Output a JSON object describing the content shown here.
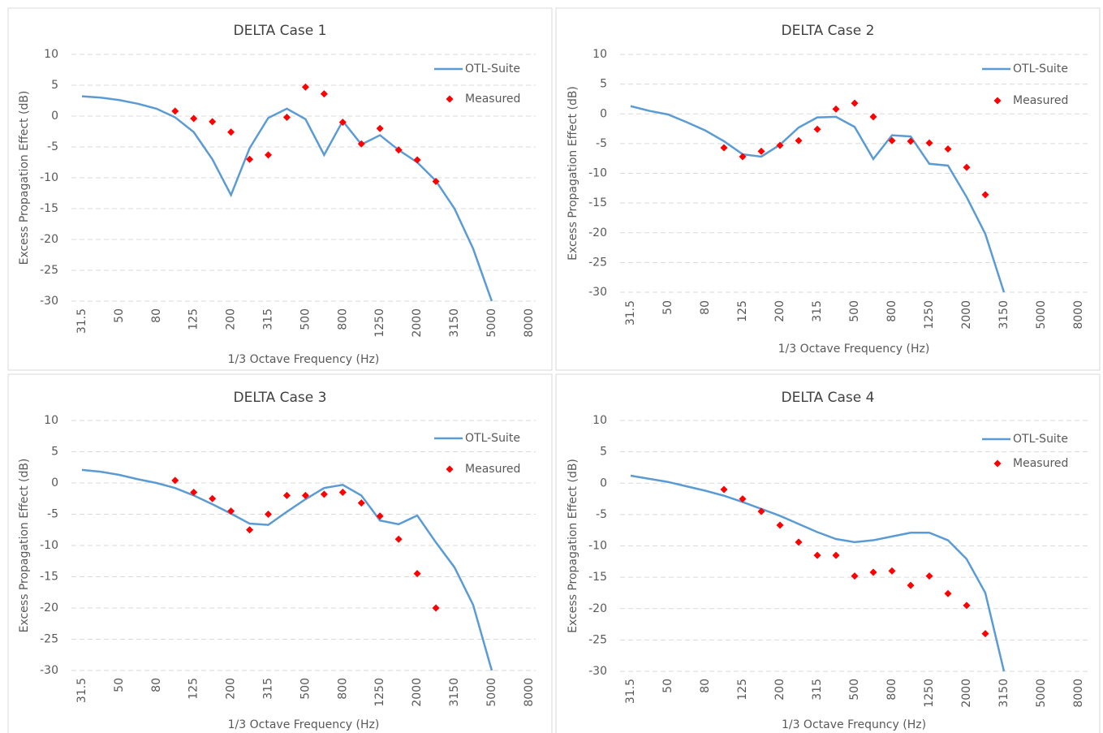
{
  "chart_data": [
    {
      "type": "line",
      "title": "DELTA Case 1",
      "x_label": "1/3 Octave Frequency (Hz)",
      "y_label": "Excess Propagation Effect (dB)",
      "categories": [
        "31.5",
        null,
        "50",
        null,
        "80",
        null,
        "125",
        null,
        "200",
        null,
        "315",
        null,
        "500",
        null,
        "800",
        null,
        "1250",
        null,
        "2000",
        null,
        "3150",
        null,
        "5000",
        null,
        "8000"
      ],
      "ylim": [
        -30,
        10
      ],
      "yticks": [
        -30,
        -25,
        -20,
        -15,
        -10,
        -5,
        0,
        5,
        10
      ],
      "grid": true,
      "legend": "upper right",
      "series": [
        {
          "name": "OTL-Suite",
          "type": "line",
          "color": "#5b9bd5",
          "values": [
            3.2,
            3.0,
            2.6,
            2.0,
            1.2,
            -0.2,
            -2.6,
            -7,
            -12.8,
            -5.2,
            -0.3,
            1.2,
            -0.5,
            -6.3,
            -0.8,
            -4.6,
            -3.1,
            -5.5,
            -7.5,
            -10.5,
            -15,
            -21.5,
            -30,
            null,
            null
          ]
        },
        {
          "name": "Measured",
          "type": "scatter",
          "color": "#ff0000",
          "values": [
            null,
            null,
            null,
            null,
            null,
            0.8,
            -0.4,
            -0.9,
            -2.6,
            -7,
            -6.3,
            -0.2,
            4.7,
            3.6,
            -1,
            -4.5,
            -2,
            -5.5,
            -7.1,
            -10.6,
            null,
            null,
            null,
            null,
            null
          ]
        }
      ]
    },
    {
      "type": "line",
      "title": "DELTA Case 2",
      "x_label": "1/3 Octave Frequency (Hz)",
      "y_label": "Excess Propagation Effect (dB)",
      "categories": [
        "31.5",
        null,
        "50",
        null,
        "80",
        null,
        "125",
        null,
        "200",
        null,
        "315",
        null,
        "500",
        null,
        "800",
        null,
        "1250",
        null,
        "2000",
        null,
        "3150",
        null,
        "5000",
        null,
        "8000"
      ],
      "ylim": [
        -30,
        10
      ],
      "yticks": [
        -30,
        -25,
        -20,
        -15,
        -10,
        -5,
        0,
        5,
        10
      ],
      "grid": true,
      "legend": "upper right",
      "series": [
        {
          "name": "OTL-Suite",
          "type": "line",
          "color": "#5b9bd5",
          "values": [
            1.3,
            0.5,
            -0.1,
            -1.4,
            -2.8,
            -4.6,
            -6.8,
            -7.2,
            -5.2,
            -2.3,
            -0.6,
            -0.5,
            -2.2,
            -7.6,
            -3.6,
            -3.8,
            -8.4,
            -8.7,
            -14,
            -20.2,
            -30,
            null,
            null,
            null,
            null
          ]
        },
        {
          "name": "Measured",
          "type": "scatter",
          "color": "#ff0000",
          "values": [
            null,
            null,
            null,
            null,
            null,
            -5.7,
            -7.2,
            -6.3,
            -5.3,
            -4.5,
            -2.6,
            0.8,
            1.8,
            -0.5,
            -4.5,
            -4.6,
            -4.9,
            -5.9,
            -9,
            -13.6,
            null,
            null,
            null,
            null,
            null
          ]
        }
      ]
    },
    {
      "type": "line",
      "title": "DELTA Case 3",
      "x_label": "1/3 Octave Frequency (Hz)",
      "y_label": "Excess Propagation Effect (dB)",
      "categories": [
        "31.5",
        null,
        "50",
        null,
        "80",
        null,
        "125",
        null,
        "200",
        null,
        "315",
        null,
        "500",
        null,
        "800",
        null,
        "1250",
        null,
        "2000",
        null,
        "3150",
        null,
        "5000",
        null,
        "8000"
      ],
      "ylim": [
        -30,
        10
      ],
      "yticks": [
        -30,
        -25,
        -20,
        -15,
        -10,
        -5,
        0,
        5,
        10
      ],
      "grid": true,
      "legend": "upper right",
      "series": [
        {
          "name": "OTL-Suite",
          "type": "line",
          "color": "#5b9bd5",
          "values": [
            2.1,
            1.8,
            1.3,
            0.6,
            0,
            -0.8,
            -2,
            -3.4,
            -4.9,
            -6.5,
            -6.7,
            -4.6,
            -2.6,
            -0.8,
            -0.3,
            -2,
            -6,
            -6.6,
            -5.2,
            -9.5,
            -13.5,
            -19.5,
            -30,
            null,
            null
          ]
        },
        {
          "name": "Measured",
          "type": "scatter",
          "color": "#ff0000",
          "values": [
            null,
            null,
            null,
            null,
            null,
            0.4,
            -1.5,
            -2.5,
            -4.5,
            -7.5,
            -5,
            -2,
            -2,
            -1.8,
            -1.5,
            -3.2,
            -5.3,
            -9,
            -14.5,
            -20,
            null,
            null,
            null,
            null,
            null
          ]
        }
      ]
    },
    {
      "type": "line",
      "title": "DELTA Case 4",
      "x_label": "1/3 Octave Frequncy (Hz)",
      "y_label": "Excess Propagation Effect (dB)",
      "categories": [
        "31.5",
        null,
        "50",
        null,
        "80",
        null,
        "125",
        null,
        "200",
        null,
        "315",
        null,
        "500",
        null,
        "800",
        null,
        "1250",
        null,
        "2000",
        null,
        "3150",
        null,
        "5000",
        null,
        "8000"
      ],
      "ylim": [
        -30,
        10
      ],
      "yticks": [
        -30,
        -25,
        -20,
        -15,
        -10,
        -5,
        0,
        5,
        10
      ],
      "grid": true,
      "legend": "upper right",
      "series": [
        {
          "name": "OTL-Suite",
          "type": "line",
          "color": "#5b9bd5",
          "values": [
            1.2,
            0.7,
            0.2,
            -0.5,
            -1.2,
            -2,
            -3,
            -4.1,
            -5.2,
            -6.5,
            -7.8,
            -8.9,
            -9.4,
            -9.1,
            -8.5,
            -7.9,
            -7.9,
            -9.1,
            -12.1,
            -17.5,
            -30,
            null,
            null,
            null,
            null
          ]
        },
        {
          "name": "Measured",
          "type": "scatter",
          "color": "#ff0000",
          "values": [
            null,
            null,
            null,
            null,
            null,
            -1,
            -2.5,
            -4.5,
            -6.7,
            -9.4,
            -11.5,
            -11.5,
            -14.8,
            -14.2,
            -14,
            -16.3,
            -14.8,
            -17.6,
            -19.5,
            -24,
            null,
            null,
            null,
            null,
            null
          ]
        }
      ]
    }
  ]
}
